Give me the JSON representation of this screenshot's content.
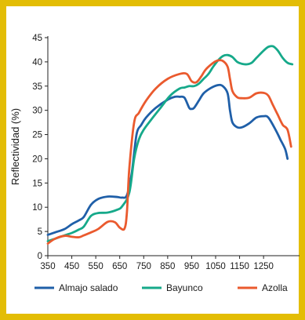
{
  "chart_data": {
    "type": "line",
    "title": "",
    "xlabel": "",
    "ylabel": "Reflectividad (%)",
    "xlim": [
      350,
      1400
    ],
    "ylim": [
      0,
      45
    ],
    "xticks": [
      "350",
      "450",
      "550",
      "650",
      "750",
      "850",
      "950",
      "1050",
      "1150",
      "1250"
    ],
    "xtick_values": [
      350,
      450,
      550,
      650,
      750,
      850,
      950,
      1050,
      1150,
      1250
    ],
    "yticks": [
      "0",
      "5",
      "10",
      "15",
      "20",
      "25",
      "30",
      "35",
      "40",
      "45"
    ],
    "ytick_values": [
      0,
      5,
      10,
      15,
      20,
      25,
      30,
      35,
      40,
      45
    ],
    "grid": false,
    "legend_position": "bottom",
    "series": [
      {
        "name": "Almajo salado",
        "color": "#1f5fa8",
        "x": [
          350,
          380,
          420,
          450,
          480,
          500,
          530,
          560,
          600,
          640,
          660,
          680,
          700,
          720,
          740,
          760,
          800,
          850,
          880,
          900,
          920,
          940,
          950,
          960,
          980,
          1000,
          1030,
          1060,
          1080,
          1100,
          1110,
          1120,
          1140,
          1160,
          1190,
          1220,
          1250,
          1270,
          1300,
          1320,
          1340,
          1350
        ],
        "y": [
          4.3,
          4.8,
          5.5,
          6.5,
          7.3,
          8,
          10.5,
          11.7,
          12.2,
          12.1,
          12,
          12.5,
          17,
          25,
          27,
          28.5,
          30.5,
          32.2,
          32.8,
          32.8,
          32.6,
          30.5,
          30.3,
          30.5,
          32,
          33.5,
          34.6,
          35.2,
          35,
          33.5,
          30,
          27.5,
          26.5,
          26.5,
          27.3,
          28.5,
          28.8,
          28.5,
          26,
          24,
          22,
          20
        ]
      },
      {
        "name": "Bayunco",
        "color": "#16a98a",
        "x": [
          350,
          380,
          420,
          450,
          480,
          500,
          530,
          560,
          600,
          640,
          660,
          690,
          710,
          730,
          750,
          780,
          820,
          860,
          900,
          920,
          940,
          960,
          980,
          1000,
          1020,
          1040,
          1060,
          1080,
          1100,
          1120,
          1140,
          1160,
          1180,
          1200,
          1220,
          1250,
          1270,
          1290,
          1310,
          1330,
          1350,
          1370
        ],
        "y": [
          3,
          3.5,
          4.2,
          4.7,
          5.4,
          6,
          8.2,
          8.8,
          8.9,
          9.5,
          10.2,
          13,
          20,
          24,
          26,
          28,
          30.5,
          33,
          34.5,
          34.7,
          35,
          35,
          35.5,
          36.5,
          37.5,
          39,
          40.3,
          41.2,
          41.4,
          41,
          40,
          39.6,
          39.5,
          39.8,
          40.8,
          42.3,
          43.1,
          43.2,
          42.3,
          40.8,
          39.8,
          39.5
        ]
      },
      {
        "name": "Azolla",
        "color": "#ea5a2e",
        "x": [
          350,
          380,
          420,
          450,
          480,
          500,
          530,
          560,
          600,
          630,
          650,
          670,
          680,
          690,
          710,
          730,
          760,
          800,
          850,
          900,
          930,
          950,
          970,
          990,
          1010,
          1040,
          1060,
          1080,
          1100,
          1110,
          1120,
          1140,
          1160,
          1190,
          1220,
          1250,
          1270,
          1290,
          1310,
          1330,
          1350,
          1365
        ],
        "y": [
          2.5,
          3.5,
          4.1,
          3.9,
          3.8,
          4.2,
          4.8,
          5.5,
          7,
          6.9,
          5.8,
          5.6,
          9,
          18,
          27.5,
          29.5,
          32,
          34.5,
          36.5,
          37.5,
          37.5,
          36,
          35.8,
          37,
          38.5,
          39.8,
          40.3,
          40.2,
          39,
          36.5,
          34,
          32.7,
          32.5,
          32.6,
          33.5,
          33.6,
          33,
          31,
          29,
          27,
          26,
          22.5
        ]
      }
    ]
  }
}
